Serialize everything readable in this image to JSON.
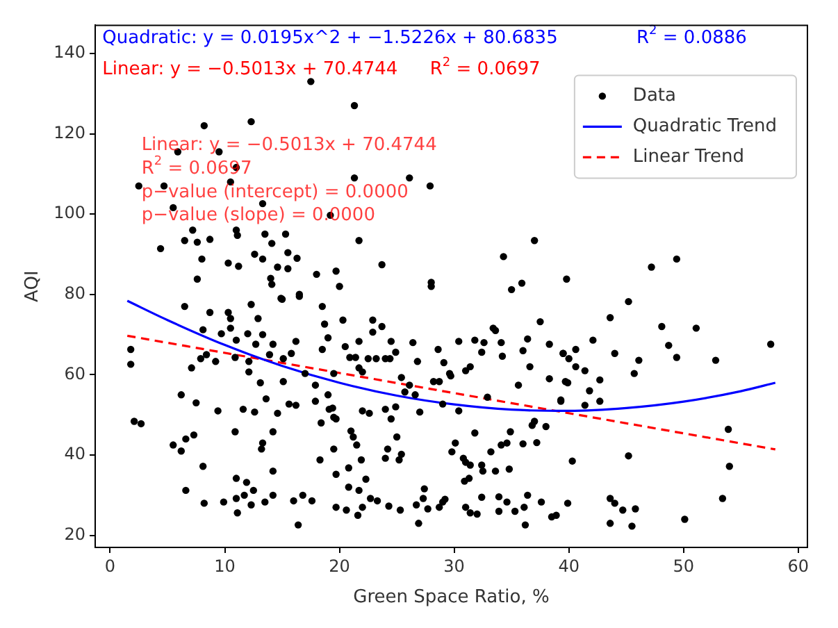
{
  "chart_data": {
    "type": "scatter",
    "xlabel": "Green Space Ratio, %",
    "ylabel": "AQI",
    "xlim": [
      -1.3,
      60.8
    ],
    "ylim": [
      17,
      147
    ],
    "xticks": [
      0,
      10,
      20,
      30,
      40,
      50,
      60
    ],
    "yticks": [
      20,
      40,
      60,
      80,
      100,
      120,
      140
    ],
    "grid": false,
    "legend": "top right",
    "annotations": [
      "Quadratic: y = 0.0195x^2 + −1.5226x + 80.6835",
      "R$^{2}$ = 0.0886",
      "Linear: y = −0.5013x + 70.4744",
      "R$^{2}$ = 0.0697",
      "Linear: y = −0.5013x + 70.4744",
      "R$^{2}$ = 0.0697",
      "p−value (intercept) = 0.0000",
      "p−value (slope) = 0.0000"
    ],
    "series": [
      {
        "type": "scatter",
        "name": "Data",
        "color": "#000000",
        "marker": "circle",
        "x": [
          17.5,
          8.2,
          12.3,
          5.9,
          9.5,
          11,
          2.5,
          4.7,
          10.5,
          5.5,
          13.3,
          19.2,
          7.2,
          11,
          13.5,
          15.3,
          6.5,
          7.6,
          8.7,
          11.1,
          14.1,
          4.4,
          8,
          12.6,
          13.3,
          15.5,
          16.3,
          10.3,
          11.2,
          14.6,
          15.5,
          14,
          7.6,
          18,
          19.7,
          14.1,
          16.5,
          14.9,
          1.8,
          1.8,
          6.5,
          8.7,
          10.3,
          10.5,
          12.3,
          12.9,
          15,
          16.5,
          18.5,
          18.7,
          8.1,
          9.7,
          10.5,
          12,
          13.3,
          11,
          12.7,
          14.2,
          16.2,
          19,
          8.4,
          7.9,
          9.2,
          10.9,
          12.1,
          13.9,
          15.8,
          15.1,
          18.5,
          7.1,
          12.1,
          13.1,
          15.1,
          17,
          17.9,
          19.5,
          6.2,
          7.5,
          9.4,
          11.6,
          12.6,
          13.6,
          14.6,
          15.6,
          16.2,
          17.9,
          19,
          19.1,
          18.4,
          19.5,
          2.1,
          2.7,
          7.3,
          6.6,
          5.5,
          6.2,
          10.9,
          14.2,
          13.3,
          13.2,
          19.5,
          8.1,
          18.3,
          11,
          11.9,
          14.2,
          12.5,
          19.7,
          6.6,
          8.2,
          9.9,
          11,
          11.7,
          12.3,
          13.5,
          14.2,
          11.1,
          16,
          16.8,
          17.6,
          16.4,
          19.7,
          21.3,
          21.3,
          26.1,
          27.9,
          21.7,
          23.7,
          34.3,
          37,
          20,
          28,
          28,
          35,
          35.9,
          39.8,
          20.3,
          22.9,
          23.7,
          22.9,
          21.7,
          20.5,
          24.5,
          26.4,
          24.9,
          20.9,
          21.4,
          22.5,
          23.2,
          24,
          24.4,
          21.7,
          22,
          26.8,
          28.6,
          29.1,
          29.6,
          30.4,
          31.8,
          32.4,
          32.6,
          33.4,
          33.6,
          34.1,
          34.2,
          36,
          36.4,
          37.5,
          38.3,
          39.5,
          36.6,
          31.4,
          31,
          25.4,
          28.2,
          28.7,
          29.7,
          26.1,
          35.6,
          38.3,
          39.7,
          32.9,
          39.3,
          26.6,
          25.7,
          29,
          30.4,
          19.4,
          19.7,
          22,
          22.6,
          24,
          24.9,
          24.5,
          27,
          37,
          36.8,
          38,
          21,
          21.2,
          21.5,
          25,
          31.8,
          34.9,
          24.2,
          25.4,
          30.1,
          29.8,
          34.1,
          34.6,
          33.2,
          36,
          37.2,
          20.8,
          21.9,
          24,
          25.2,
          30.8,
          31,
          31.4,
          32.4,
          32.5,
          33.6,
          34.8,
          22.3,
          30.9,
          31.3,
          20.8,
          21.7,
          27.4,
          22.7,
          23.3,
          27.3,
          29,
          29.2,
          33.9,
          34.6,
          36.4,
          37.6,
          32.4,
          20.6,
          22,
          24.3,
          25.3,
          26.7,
          27.7,
          28.7,
          21.6,
          26.9,
          31,
          31.4,
          32,
          33.9,
          35.3,
          36.2,
          36.1,
          38.5,
          45.2,
          43.6,
          48.1,
          51.1,
          57.6,
          48.7,
          49.4,
          52.8,
          42.1,
          44,
          46.1,
          45.7,
          39.5,
          40.6,
          40,
          40.6,
          41.4,
          42.7,
          39.9,
          41.8,
          39.3,
          41.4,
          42.7,
          53.9,
          40.3,
          45.2,
          54,
          53.4,
          43.6,
          44,
          44.7,
          45.8,
          43.6,
          45.5,
          50.1,
          39.9,
          38.9,
          47.2,
          49.4
        ],
        "values": [
          133,
          122,
          123,
          115.5,
          115.5,
          111.6,
          107,
          107,
          108,
          101.6,
          102.6,
          99.7,
          96,
          96,
          95,
          95,
          93.4,
          93,
          93.7,
          94.7,
          92.7,
          91.4,
          88.8,
          90,
          88.8,
          90.4,
          89,
          87.8,
          87,
          86.8,
          86.4,
          84,
          83.8,
          85,
          85.8,
          82.5,
          80,
          79,
          66.3,
          62.6,
          77,
          75.5,
          75.5,
          74,
          77.5,
          74,
          78.8,
          79.5,
          77,
          72.6,
          71.2,
          70.2,
          71.6,
          70.2,
          70,
          68.6,
          67.6,
          67.6,
          68.3,
          69.2,
          65,
          64,
          63.3,
          64.3,
          63.3,
          65,
          65.3,
          64,
          66.3,
          61.7,
          60.7,
          58,
          58.3,
          60.3,
          57.4,
          60.3,
          55,
          53,
          51,
          51.4,
          50.7,
          54,
          50.4,
          52.7,
          52.4,
          53.4,
          55,
          51.4,
          48,
          49.4,
          48.4,
          47.8,
          45,
          44,
          42.5,
          41,
          45.8,
          45.8,
          43,
          41.5,
          41.5,
          37.2,
          38.8,
          34.2,
          33.2,
          36,
          31.2,
          35.2,
          31.2,
          28,
          28.3,
          29.2,
          30,
          27.6,
          28.3,
          30,
          25.6,
          28.6,
          30,
          28.6,
          22.6,
          27,
          127,
          109,
          109,
          107,
          93.4,
          87.4,
          89.4,
          93.4,
          82,
          83,
          82,
          81.2,
          82.8,
          83.8,
          73.6,
          73.6,
          72,
          70.6,
          68.3,
          67,
          68.3,
          68,
          65.6,
          64.3,
          64.3,
          64,
          64,
          64,
          64,
          61.7,
          60.7,
          63.3,
          66.3,
          63,
          60.3,
          68.3,
          68.6,
          65.6,
          68,
          71.6,
          71,
          68,
          64.6,
          66,
          68.9,
          73.2,
          67.6,
          65.3,
          62,
          62,
          61,
          59.3,
          58.3,
          58.3,
          59.7,
          57.4,
          57.4,
          59,
          58.3,
          54.4,
          53.7,
          55,
          55.7,
          52.7,
          51,
          51.7,
          49,
          51,
          50.4,
          51.4,
          52,
          49,
          50.7,
          48.4,
          47.4,
          47.1,
          46,
          44.5,
          42.5,
          44.5,
          45.5,
          45.8,
          41.5,
          40.2,
          43,
          40.8,
          42.5,
          43,
          40.8,
          42.8,
          43.1,
          36.8,
          38.8,
          39.2,
          38.8,
          39.2,
          38.2,
          37.5,
          37.5,
          36,
          36,
          36.5,
          34,
          33.5,
          34.2,
          32,
          31.2,
          31.6,
          29.2,
          28.6,
          29.2,
          28.3,
          29,
          29.6,
          28.3,
          30,
          28.3,
          29.5,
          26.3,
          27,
          27.3,
          26.3,
          27.6,
          26.6,
          27,
          25,
          23,
          27,
          25.6,
          25.3,
          26,
          26,
          22.6,
          27,
          24.6,
          78.2,
          74.2,
          72,
          71.6,
          67.6,
          67.3,
          64.3,
          63.6,
          68.6,
          65.3,
          63.6,
          60.3,
          65.3,
          66.3,
          64,
          62,
          61,
          58.7,
          58,
          56,
          53.4,
          52.4,
          53.4,
          46.4,
          38.5,
          39.8,
          37.2,
          29.2,
          29.2,
          28,
          26.3,
          26.6,
          23,
          22.3,
          24,
          28,
          25,
          86.8,
          88.8
        ]
      },
      {
        "type": "line",
        "name": "Quadratic Trend",
        "color": "#0000ff",
        "marker": "none",
        "line_style": "solid",
        "x": [
          1.5,
          5,
          10,
          15,
          20,
          25,
          30,
          35,
          40,
          45,
          50,
          55,
          58
        ],
        "values": [
          78.4,
          73.6,
          67.4,
          62.2,
          58.0,
          54.8,
          52.6,
          51.3,
          51.0,
          51.7,
          53.3,
          55.9,
          58.0
        ]
      },
      {
        "type": "line",
        "name": "Linear Trend",
        "color": "#ff0000",
        "marker": "none",
        "line_style": "dashed",
        "x": [
          1.5,
          58
        ],
        "values": [
          69.7,
          41.4
        ]
      }
    ]
  }
}
